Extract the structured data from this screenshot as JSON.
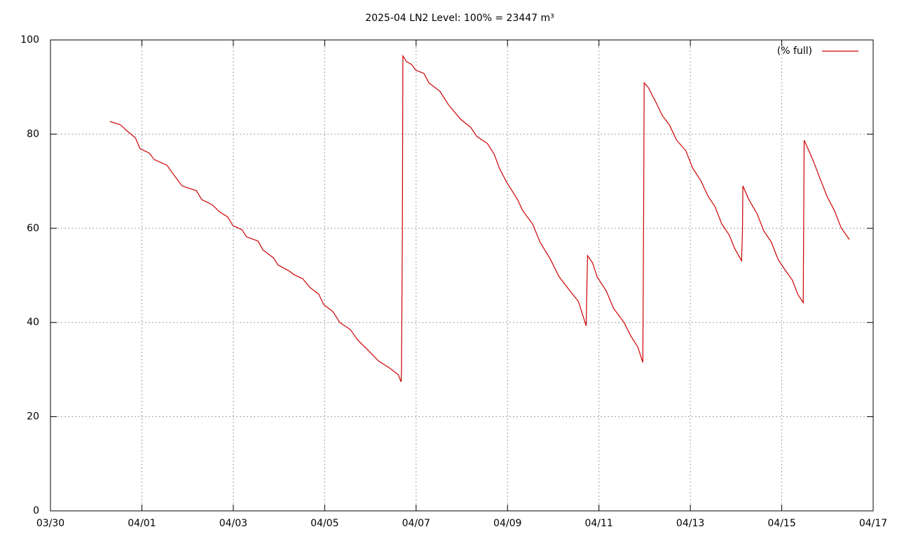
{
  "chart_data": {
    "type": "line",
    "title": "2025-04 LN2 Level: 100% = 23447 m³",
    "xlim": [
      0,
      18
    ],
    "xticks": [
      {
        "value": 0,
        "label": "03/30"
      },
      {
        "value": 2,
        "label": "04/01"
      },
      {
        "value": 4,
        "label": "04/03"
      },
      {
        "value": 6,
        "label": "04/05"
      },
      {
        "value": 8,
        "label": "04/07"
      },
      {
        "value": 10,
        "label": "04/09"
      },
      {
        "value": 12,
        "label": "04/11"
      },
      {
        "value": 14,
        "label": "04/13"
      },
      {
        "value": 16,
        "label": "04/15"
      },
      {
        "value": 18,
        "label": "04/17"
      }
    ],
    "ylim": [
      0,
      100
    ],
    "yticks": [
      0,
      20,
      40,
      60,
      80,
      100
    ],
    "grid": true,
    "legend": "top-right",
    "series": [
      {
        "name": "(% full)",
        "color": "#cc0000",
        "x": [
          1.3,
          1.53,
          1.66,
          1.86,
          1.96,
          2.16,
          2.27,
          2.55,
          2.65,
          2.88,
          3.19,
          3.31,
          3.54,
          3.7,
          3.88,
          3.99,
          4.19,
          4.29,
          4.54,
          4.65,
          4.88,
          4.98,
          5.21,
          5.34,
          5.52,
          5.67,
          5.87,
          5.98,
          6.18,
          6.33,
          6.56,
          6.72,
          6.95,
          7.18,
          7.41,
          7.61,
          7.67,
          7.68,
          7.7,
          7.71,
          7.79,
          7.9,
          7.99,
          8.17,
          8.28,
          8.52,
          8.71,
          8.97,
          9.2,
          9.33,
          9.56,
          9.71,
          9.82,
          9.98,
          10.22,
          10.33,
          10.55,
          10.71,
          10.94,
          11.13,
          11.4,
          11.55,
          11.72,
          11.73,
          11.75,
          11.86,
          11.96,
          12.16,
          12.32,
          12.55,
          12.7,
          12.85,
          12.96,
          12.98,
          12.99,
          13.08,
          13.24,
          13.39,
          13.54,
          13.7,
          13.9,
          14.05,
          14.23,
          14.39,
          14.54,
          14.69,
          14.85,
          14.97,
          15.12,
          15.14,
          15.15,
          15.28,
          15.46,
          15.61,
          15.77,
          15.92,
          16.07,
          16.23,
          16.35,
          16.47,
          16.49,
          16.56,
          16.69,
          16.84,
          16.99,
          17.15,
          17.3,
          17.48
        ],
        "values": [
          82.7,
          82.0,
          80.8,
          79.2,
          76.9,
          76.0,
          74.6,
          73.4,
          72.0,
          69.0,
          68.0,
          66.1,
          65.0,
          63.5,
          62.4,
          60.6,
          59.7,
          58.2,
          57.3,
          55.4,
          53.7,
          52.2,
          51.0,
          50.1,
          49.3,
          47.5,
          46.0,
          43.8,
          42.3,
          40.0,
          38.5,
          36.3,
          34.1,
          31.8,
          30.4,
          28.9,
          27.4,
          29.6,
          59.4,
          96.6,
          95.4,
          94.8,
          93.6,
          92.9,
          90.9,
          89.1,
          86.2,
          83.2,
          81.4,
          79.5,
          78.0,
          75.7,
          72.8,
          69.8,
          66.1,
          63.8,
          60.9,
          57.1,
          53.4,
          49.7,
          46.3,
          44.5,
          39.3,
          44.5,
          54.2,
          52.7,
          49.7,
          46.7,
          43.0,
          40.0,
          37.1,
          34.8,
          31.5,
          67.6,
          90.9,
          89.9,
          86.9,
          83.9,
          82.0,
          78.7,
          76.5,
          72.8,
          70.1,
          66.8,
          64.6,
          60.9,
          58.6,
          55.7,
          53.1,
          59.4,
          69.0,
          66.1,
          63.1,
          59.4,
          57.1,
          53.4,
          51.2,
          49.0,
          46.0,
          44.2,
          78.7,
          77.2,
          74.3,
          70.5,
          66.8,
          63.8,
          60.1,
          57.6
        ]
      }
    ]
  }
}
